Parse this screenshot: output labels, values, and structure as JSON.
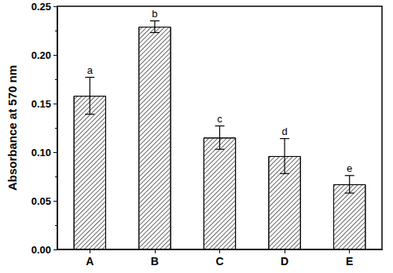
{
  "chart_data": {
    "type": "bar",
    "y_label": "Absorbance at 570 nm",
    "categories": [
      "A",
      "B",
      "C",
      "D",
      "E"
    ],
    "values": [
      0.158,
      0.229,
      0.115,
      0.096,
      0.067
    ],
    "errors": [
      0.019,
      0.006,
      0.012,
      0.018,
      0.009
    ],
    "annotations": [
      "a",
      "b",
      "c",
      "d",
      "e"
    ],
    "color": "#ffffff",
    "ylim": [
      0,
      0.25
    ],
    "yticks": [
      {
        "value": 0,
        "label": "0.00"
      },
      {
        "value": 0.05,
        "label": "0.05"
      },
      {
        "value": 0.1,
        "label": "0.10"
      },
      {
        "value": 0.15,
        "label": "0.15"
      },
      {
        "value": 0.2,
        "label": "0.20"
      },
      {
        "value": 0.25,
        "label": "0.25"
      }
    ],
    "grid": false
  }
}
